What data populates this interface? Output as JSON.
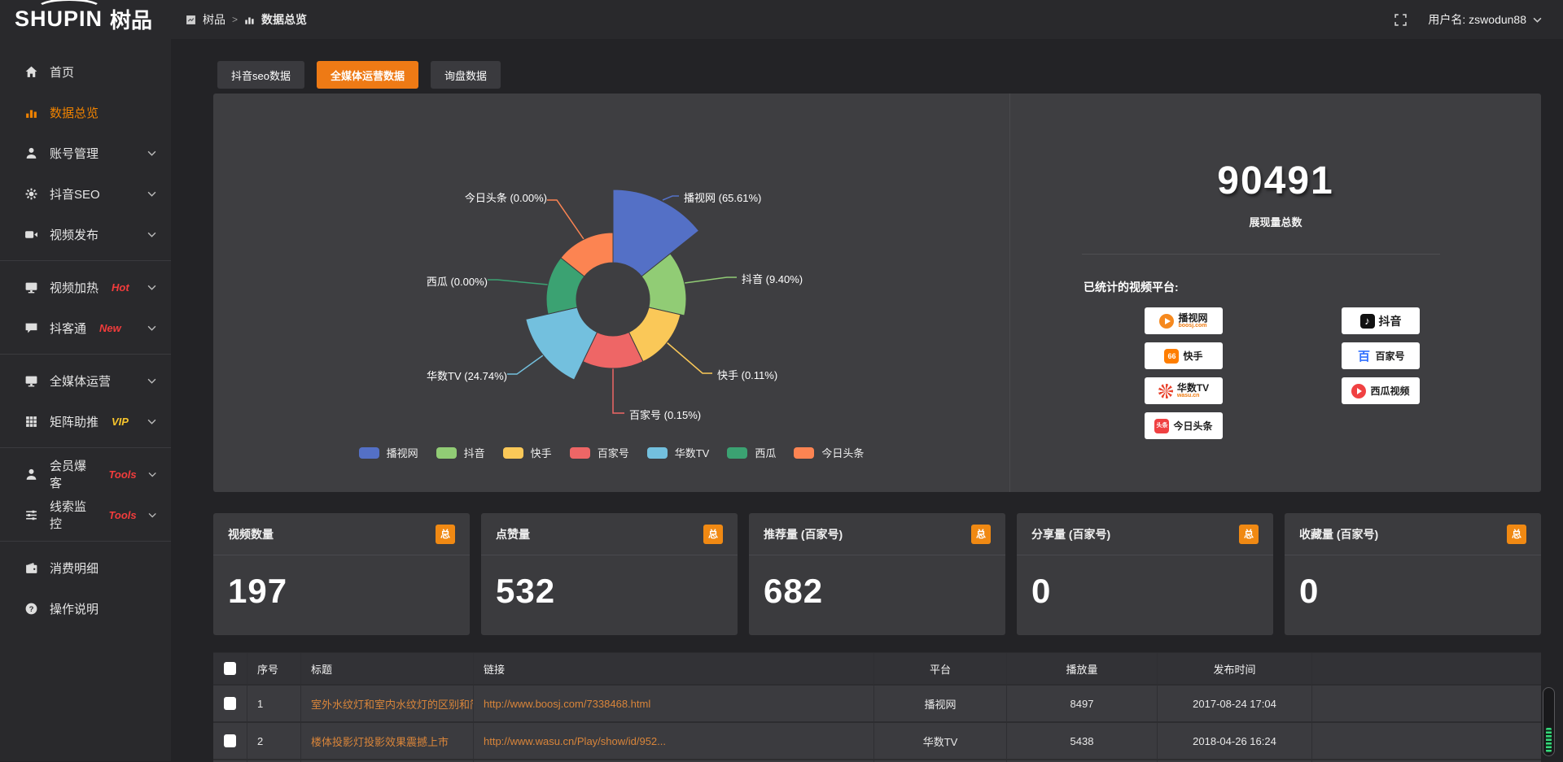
{
  "topbar": {
    "logo_main": "SHUPIN",
    "logo_cn": "树品",
    "breadcrumb_root": "树品",
    "breadcrumb_sep": ">",
    "breadcrumb_current": "数据总览",
    "username": "用户名: zswodun88"
  },
  "sidebar": {
    "items": [
      {
        "label": "首页"
      },
      {
        "label": "数据总览"
      },
      {
        "label": "账号管理"
      },
      {
        "label": "抖音SEO"
      },
      {
        "label": "视频发布"
      },
      {
        "label": "视频加热",
        "badge": "Hot"
      },
      {
        "label": "抖客通",
        "badge": "New"
      },
      {
        "label": "全媒体运营"
      },
      {
        "label": "矩阵助推",
        "badge": "VIP"
      },
      {
        "label": "会员爆客",
        "badge": "Tools"
      },
      {
        "label": "线索监控",
        "badge": "Tools"
      },
      {
        "label": "消费明细"
      },
      {
        "label": "操作说明"
      }
    ]
  },
  "tabs": [
    {
      "label": "抖音seo数据"
    },
    {
      "label": "全媒体运营数据"
    },
    {
      "label": "询盘数据"
    }
  ],
  "chart_data": {
    "type": "pie",
    "variant": "nightingale-rose",
    "legend_position": "bottom",
    "inner_radius": 45,
    "series": [
      {
        "name": "播视网",
        "percent": 65.61,
        "label": "播视网 (65.61%)",
        "color": "#5470c6",
        "draw_radius": 135
      },
      {
        "name": "抖音",
        "percent": 9.4,
        "label": "抖音 (9.40%)",
        "color": "#91cc75",
        "draw_radius": 90
      },
      {
        "name": "快手",
        "percent": 0.11,
        "label": "快手 (0.11%)",
        "color": "#fac858",
        "draw_radius": 85
      },
      {
        "name": "百家号",
        "percent": 0.15,
        "label": "百家号 (0.15%)",
        "color": "#ee6666",
        "draw_radius": 85
      },
      {
        "name": "华数TV",
        "percent": 24.74,
        "label": "华数TV (24.74%)",
        "color": "#73c0de",
        "draw_radius": 110
      },
      {
        "name": "西瓜",
        "percent": 0.0,
        "label": "西瓜 (0.00%)",
        "color": "#3ba272",
        "draw_radius": 82
      },
      {
        "name": "今日头条",
        "percent": 0.0,
        "label": "今日头条 (0.00%)",
        "color": "#fc8452",
        "draw_radius": 82
      }
    ]
  },
  "summary": {
    "total_value": "90491",
    "total_label": "展现量总数",
    "platforms_title": "已统计的视频平台:",
    "platform_badges": [
      {
        "name": "播视网",
        "sub": "boosj.com"
      },
      {
        "name": "抖音",
        "sub": ""
      },
      {
        "name": "快手",
        "sub": ""
      },
      {
        "name": "百家号",
        "sub": ""
      },
      {
        "name": "华数TV",
        "sub": "wasu.cn"
      },
      {
        "name": "西瓜视频",
        "sub": ""
      },
      {
        "name": "今日头条",
        "sub": ""
      }
    ]
  },
  "stat_cards": [
    {
      "label": "视频数量",
      "badge": "总",
      "value": "197"
    },
    {
      "label": "点赞量",
      "badge": "总",
      "value": "532"
    },
    {
      "label": "推荐量 (百家号)",
      "badge": "总",
      "value": "682"
    },
    {
      "label": "分享量 (百家号)",
      "badge": "总",
      "value": "0"
    },
    {
      "label": "收藏量 (百家号)",
      "badge": "总",
      "value": "0"
    }
  ],
  "table": {
    "columns": [
      "序号",
      "标题",
      "链接",
      "平台",
      "播放量",
      "发布时间"
    ],
    "rows": [
      {
        "index": "1",
        "title": "室外水纹灯和室内水纹灯的区别和简介",
        "link": "http://www.boosj.com/7338468.html",
        "platform": "播视网",
        "plays": "8497",
        "time": "2017-08-24 17:04"
      },
      {
        "index": "2",
        "title": "楼体投影灯投影效果震撼上市",
        "link": "http://www.wasu.cn/Play/show/id/952...",
        "platform": "华数TV",
        "plays": "5438",
        "time": "2018-04-26 16:24"
      }
    ]
  }
}
